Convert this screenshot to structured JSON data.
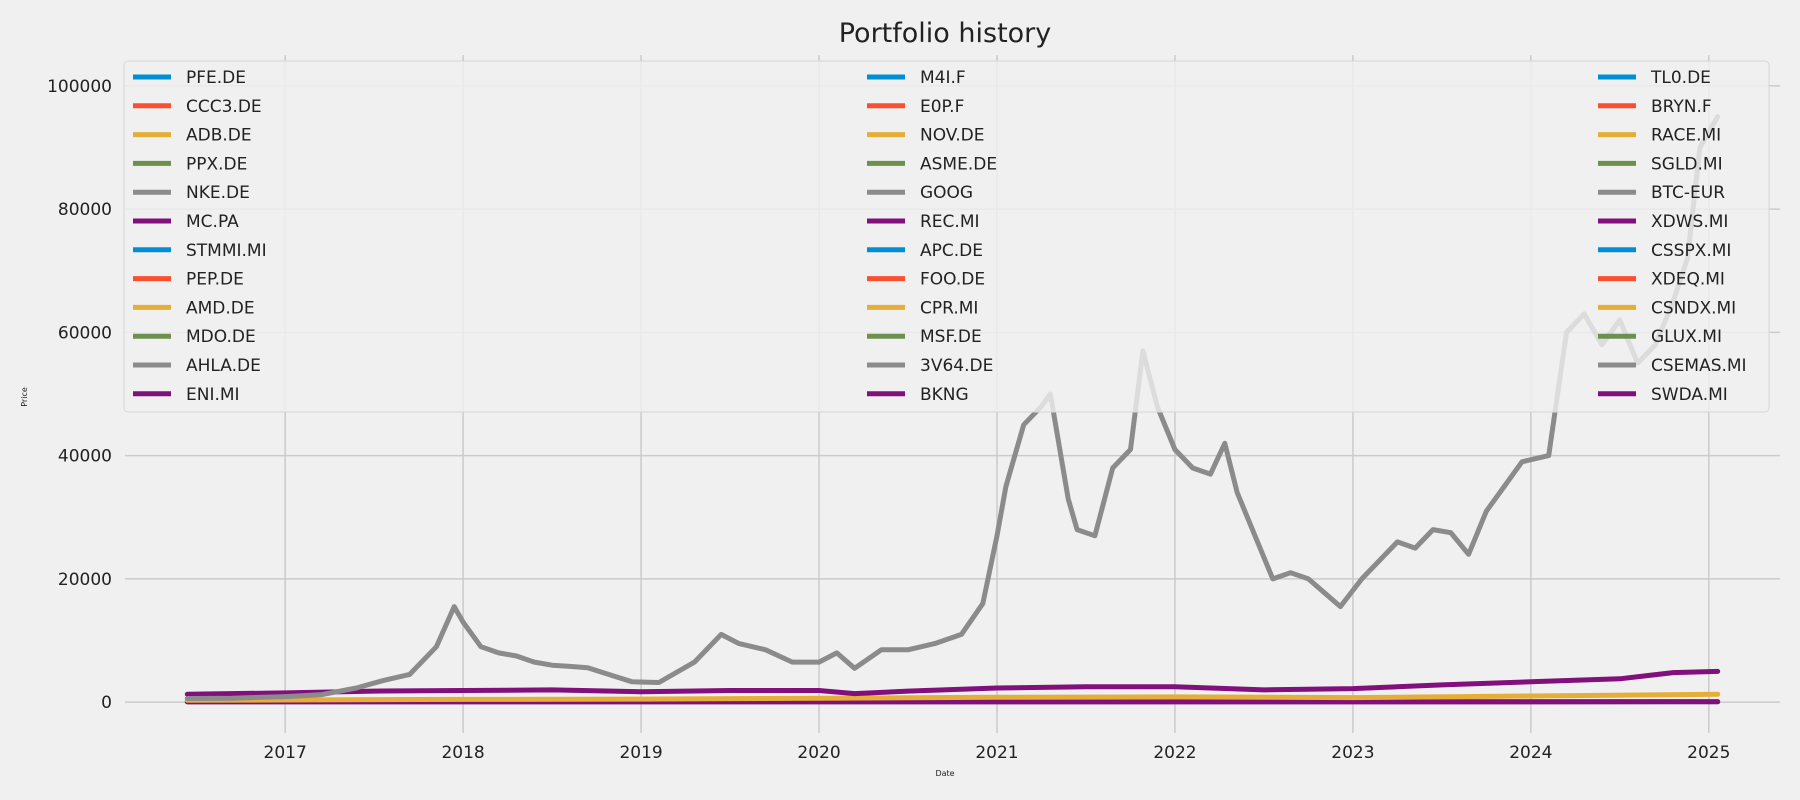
{
  "chart_data": {
    "type": "line",
    "title": "Portfolio history",
    "xlabel": "Date",
    "ylabel": "Price",
    "xlim": [
      2016.1,
      2025.4
    ],
    "ylim": [
      -5000,
      105000
    ],
    "grid": true,
    "legend_position": "top (three columns: left, center, right)",
    "x_ticks": [
      2017,
      2018,
      2019,
      2020,
      2021,
      2022,
      2023,
      2024,
      2025
    ],
    "y_ticks": [
      0,
      20000,
      40000,
      60000,
      80000,
      100000
    ],
    "colors": [
      "#008fd5",
      "#fc4f30",
      "#e5ae38",
      "#6d904f",
      "#8b8b8b",
      "#810f7c"
    ],
    "legend_columns": [
      [
        "PFE.DE",
        "CCC3.DE",
        "ADB.DE",
        "PPX.DE",
        "NKE.DE",
        "MC.PA",
        "STMMI.MI",
        "PEP.DE",
        "AMD.DE",
        "MDO.DE",
        "AHLA.DE",
        "ENI.MI"
      ],
      [
        "M4I.F",
        "E0P.F",
        "NOV.DE",
        "ASME.DE",
        "GOOG",
        "REC.MI",
        "APC.DE",
        "FOO.DE",
        "CPR.MI",
        "MSF.DE",
        "3V64.DE",
        "BKNG"
      ],
      [
        "TL0.DE",
        "BRYN.F",
        "RACE.MI",
        "SGLD.MI",
        "BTC-EUR",
        "XDWS.MI",
        "CSSPX.MI",
        "XDEQ.MI",
        "CSNDX.MI",
        "GLUX.MI",
        "CSEMAS.MI",
        "SWDA.MI"
      ]
    ],
    "series": [
      {
        "name": "BTC-EUR",
        "color": "#8b8b8b",
        "x": [
          2016.45,
          2016.7,
          2017.0,
          2017.2,
          2017.4,
          2017.55,
          2017.7,
          2017.85,
          2017.95,
          2018.0,
          2018.1,
          2018.2,
          2018.3,
          2018.4,
          2018.5,
          2018.6,
          2018.7,
          2018.85,
          2018.95,
          2019.1,
          2019.3,
          2019.45,
          2019.55,
          2019.7,
          2019.85,
          2020.0,
          2020.1,
          2020.2,
          2020.35,
          2020.5,
          2020.65,
          2020.8,
          2020.92,
          2021.0,
          2021.05,
          2021.15,
          2021.25,
          2021.3,
          2021.4,
          2021.45,
          2021.55,
          2021.65,
          2021.75,
          2021.82,
          2021.9,
          2022.0,
          2022.1,
          2022.2,
          2022.28,
          2022.35,
          2022.45,
          2022.55,
          2022.65,
          2022.75,
          2022.85,
          2022.93,
          2023.05,
          2023.15,
          2023.25,
          2023.35,
          2023.45,
          2023.55,
          2023.65,
          2023.75,
          2023.85,
          2023.95,
          2024.1,
          2024.2,
          2024.3,
          2024.4,
          2024.5,
          2024.6,
          2024.7,
          2024.8,
          2024.88,
          2024.95,
          2025.05
        ],
        "y": [
          600,
          650,
          900,
          1200,
          2300,
          3500,
          4500,
          9000,
          15500,
          13000,
          9000,
          8000,
          7500,
          6500,
          6000,
          5800,
          5600,
          4200,
          3300,
          3200,
          6500,
          11000,
          9500,
          8500,
          6500,
          6500,
          8000,
          5500,
          8500,
          8500,
          9500,
          11000,
          16000,
          27000,
          35000,
          45000,
          48000,
          50000,
          33000,
          28000,
          27000,
          38000,
          41000,
          57000,
          48000,
          41000,
          38000,
          37000,
          42000,
          34000,
          27000,
          20000,
          21000,
          20000,
          17500,
          15500,
          20000,
          23000,
          26000,
          25000,
          28000,
          27500,
          24000,
          31000,
          35000,
          39000,
          40000,
          60000,
          63000,
          58000,
          62000,
          55000,
          58000,
          65000,
          72000,
          90000,
          95000
        ]
      },
      {
        "name": "SWDA.MI",
        "color": "#810f7c",
        "x": [
          2016.45,
          2017.0,
          2017.5,
          2018.0,
          2018.5,
          2019.0,
          2019.5,
          2020.0,
          2020.2,
          2020.5,
          2021.0,
          2021.5,
          2022.0,
          2022.5,
          2023.0,
          2023.5,
          2024.0,
          2024.5,
          2024.8,
          2025.05
        ],
        "y": [
          1300,
          1500,
          1800,
          1900,
          2000,
          1700,
          1900,
          1900,
          1400,
          1800,
          2300,
          2500,
          2500,
          2000,
          2200,
          2800,
          3300,
          3800,
          4800,
          5000
        ]
      },
      {
        "name": "CSNDX.MI",
        "color": "#e5ae38",
        "x": [
          2016.45,
          2017.0,
          2018.0,
          2019.0,
          2020.0,
          2021.0,
          2022.0,
          2023.0,
          2024.0,
          2025.05
        ],
        "y": [
          300,
          350,
          450,
          500,
          650,
          800,
          850,
          750,
          1000,
          1300
        ]
      },
      {
        "name": "PFE.DE",
        "color": "#008fd5",
        "x": [
          2016.45,
          2025.05
        ],
        "y": [
          100,
          100
        ]
      },
      {
        "name": "ENI.MI",
        "color": "#810f7c",
        "x": [
          2016.45,
          2025.05
        ],
        "y": [
          50,
          60
        ]
      }
    ]
  }
}
